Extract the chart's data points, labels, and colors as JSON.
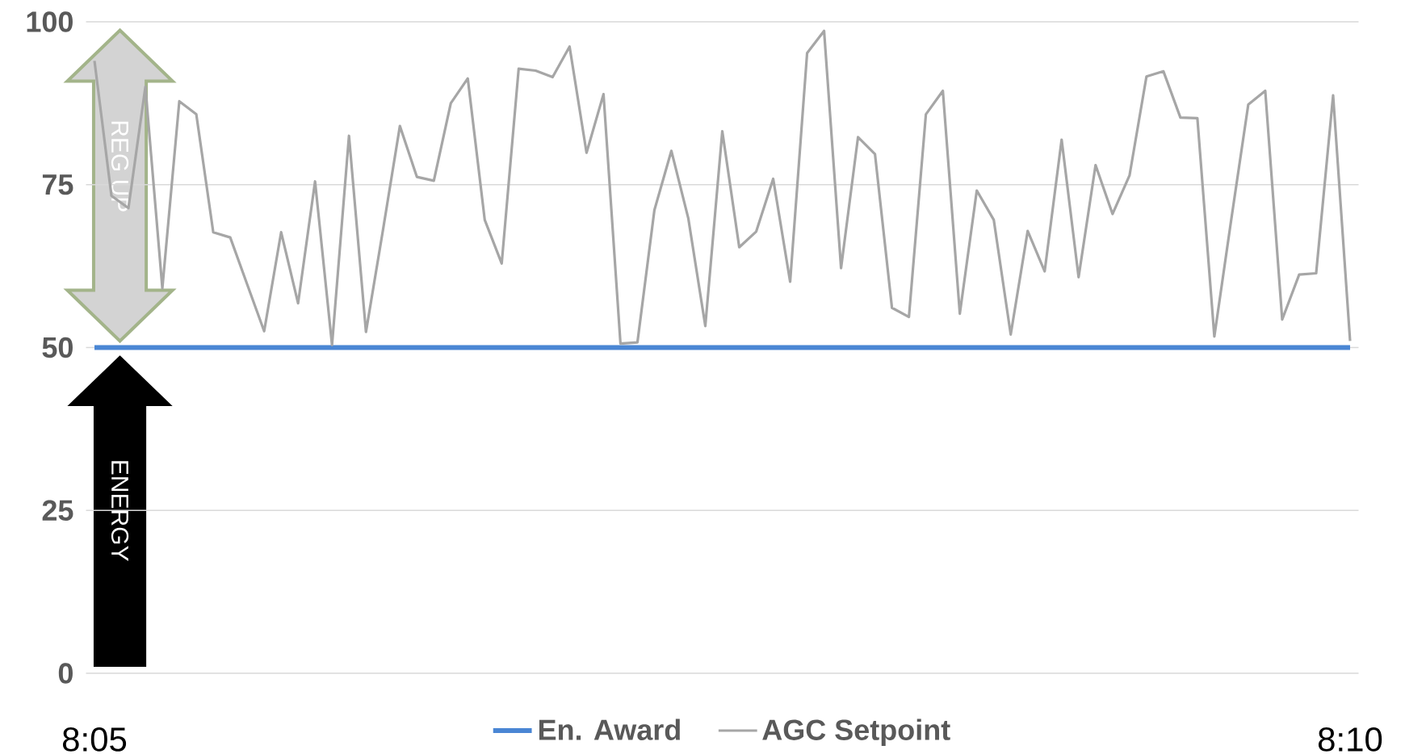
{
  "chart_data": {
    "type": "line",
    "categories": [
      "8:05",
      null,
      null,
      null,
      null,
      null,
      null,
      null,
      null,
      null,
      null,
      null,
      null,
      null,
      null,
      null,
      null,
      null,
      null,
      null,
      null,
      null,
      null,
      null,
      null,
      null,
      null,
      null,
      null,
      null,
      null,
      null,
      null,
      null,
      null,
      null,
      null,
      null,
      null,
      null,
      null,
      null,
      null,
      null,
      null,
      null,
      null,
      null,
      null,
      null,
      null,
      null,
      null,
      null,
      null,
      null,
      null,
      null,
      null,
      null,
      null,
      null,
      null,
      null,
      null,
      null,
      null,
      null,
      null,
      null,
      null,
      null,
      null,
      null,
      "8:10"
    ],
    "series": [
      {
        "name": "En. Award",
        "color": "#4a86d4",
        "values": [
          50,
          50,
          50,
          50,
          50,
          50,
          50,
          50,
          50,
          50,
          50,
          50,
          50,
          50,
          50,
          50,
          50,
          50,
          50,
          50,
          50,
          50,
          50,
          50,
          50,
          50,
          50,
          50,
          50,
          50,
          50,
          50,
          50,
          50,
          50,
          50,
          50,
          50,
          50,
          50,
          50,
          50,
          50,
          50,
          50,
          50,
          50,
          50,
          50,
          50,
          50,
          50,
          50,
          50,
          50,
          50,
          50,
          50,
          50,
          50,
          50,
          50,
          50,
          50,
          50,
          50,
          50,
          50,
          50,
          50,
          50,
          50,
          50,
          50,
          50
        ]
      },
      {
        "name": "AGC Setpoint",
        "color": "#a6a6a6",
        "values": [
          94,
          73.3,
          71.4,
          90,
          59.1,
          87.8,
          85.8,
          67.7,
          66.9,
          59.7,
          52.5,
          67.7,
          56.8,
          75.5,
          50.4,
          82.5,
          52.4,
          68,
          84,
          76.2,
          75.6,
          87.5,
          91.3,
          69.6,
          62.9,
          92.8,
          92.5,
          91.5,
          96.2,
          79.9,
          88.9,
          50.6,
          50.8,
          71.1,
          80.2,
          69.8,
          53.3,
          83.2,
          65.4,
          67.8,
          75.9,
          60.1,
          95.2,
          98.6,
          62.2,
          82.3,
          79.7,
          56.1,
          54.7,
          85.8,
          89.4,
          55.2,
          74.1,
          69.6,
          52,
          67.9,
          61.7,
          81.9,
          60.8,
          78,
          70.5,
          76.4,
          91.6,
          92.4,
          85.3,
          85.2,
          51.7,
          69.7,
          87.3,
          89.4,
          54.3,
          61.2,
          61.4,
          88.7,
          51
        ]
      }
    ],
    "ylim": [
      0,
      100
    ],
    "yticks": [
      0,
      25,
      50,
      75,
      100
    ],
    "grid": "y",
    "legend": "bottom",
    "annotations": [
      "REG UP",
      "ENERGY"
    ]
  }
}
